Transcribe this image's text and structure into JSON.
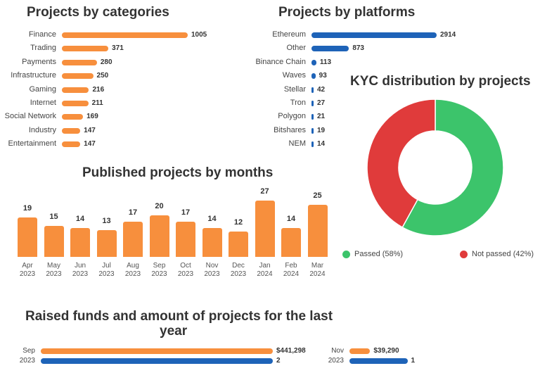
{
  "colors": {
    "orange": "#f78f3d",
    "blue": "#1e63b8",
    "green": "#3cc46b",
    "red": "#e03b3b"
  },
  "chart_data": [
    {
      "type": "bar",
      "orientation": "horizontal",
      "title": "Projects by categories",
      "categories": [
        "Finance",
        "Trading",
        "Payments",
        "Infrastructure",
        "Gaming",
        "Internet",
        "Social Network",
        "Industry",
        "Entertainment"
      ],
      "values": [
        1005,
        371,
        280,
        250,
        216,
        211,
        169,
        147,
        147
      ],
      "color": "#f78f3d"
    },
    {
      "type": "bar",
      "orientation": "horizontal",
      "title": "Projects by platforms",
      "categories": [
        "Ethereum",
        "Other",
        "Binance Chain",
        "Waves",
        "Stellar",
        "Tron",
        "Polygon",
        "Bitshares",
        "NEM"
      ],
      "values": [
        2914,
        873,
        113,
        93,
        42,
        27,
        21,
        19,
        14
      ],
      "color": "#1e63b8"
    },
    {
      "type": "pie",
      "donut": true,
      "title": "KYC distribution by projects",
      "slices": [
        {
          "label": "Passed (58%)",
          "value": 58,
          "color": "#3cc46b"
        },
        {
          "label": "Not passed (42%)",
          "value": 42,
          "color": "#e03b3b"
        }
      ],
      "legend": "bottom"
    },
    {
      "type": "bar",
      "title": "Published projects by months",
      "categories": [
        [
          "Apr",
          "2023"
        ],
        [
          "May",
          "2023"
        ],
        [
          "Jun",
          "2023"
        ],
        [
          "Jul",
          "2023"
        ],
        [
          "Aug",
          "2023"
        ],
        [
          "Sep",
          "2023"
        ],
        [
          "Oct",
          "2023"
        ],
        [
          "Nov",
          "2023"
        ],
        [
          "Dec",
          "2023"
        ],
        [
          "Jan",
          "2024"
        ],
        [
          "Feb",
          "2024"
        ],
        [
          "Mar",
          "2024"
        ]
      ],
      "values": [
        19,
        15,
        14,
        13,
        17,
        20,
        17,
        14,
        12,
        27,
        14,
        25
      ],
      "color": "#f78f3d"
    },
    {
      "type": "bar",
      "orientation": "horizontal",
      "title_lines": [
        "Raised funds and amount of projects for the last",
        "year"
      ],
      "groups": [
        {
          "label": [
            "Sep",
            "2023"
          ],
          "funds": 441298,
          "funds_label": "$441,298",
          "projects": 2,
          "projects_label": "2"
        },
        {
          "label": [
            "Nov",
            "2023"
          ],
          "funds": 39290,
          "funds_label": "$39,290",
          "projects": 1,
          "projects_label": "1"
        }
      ]
    }
  ]
}
